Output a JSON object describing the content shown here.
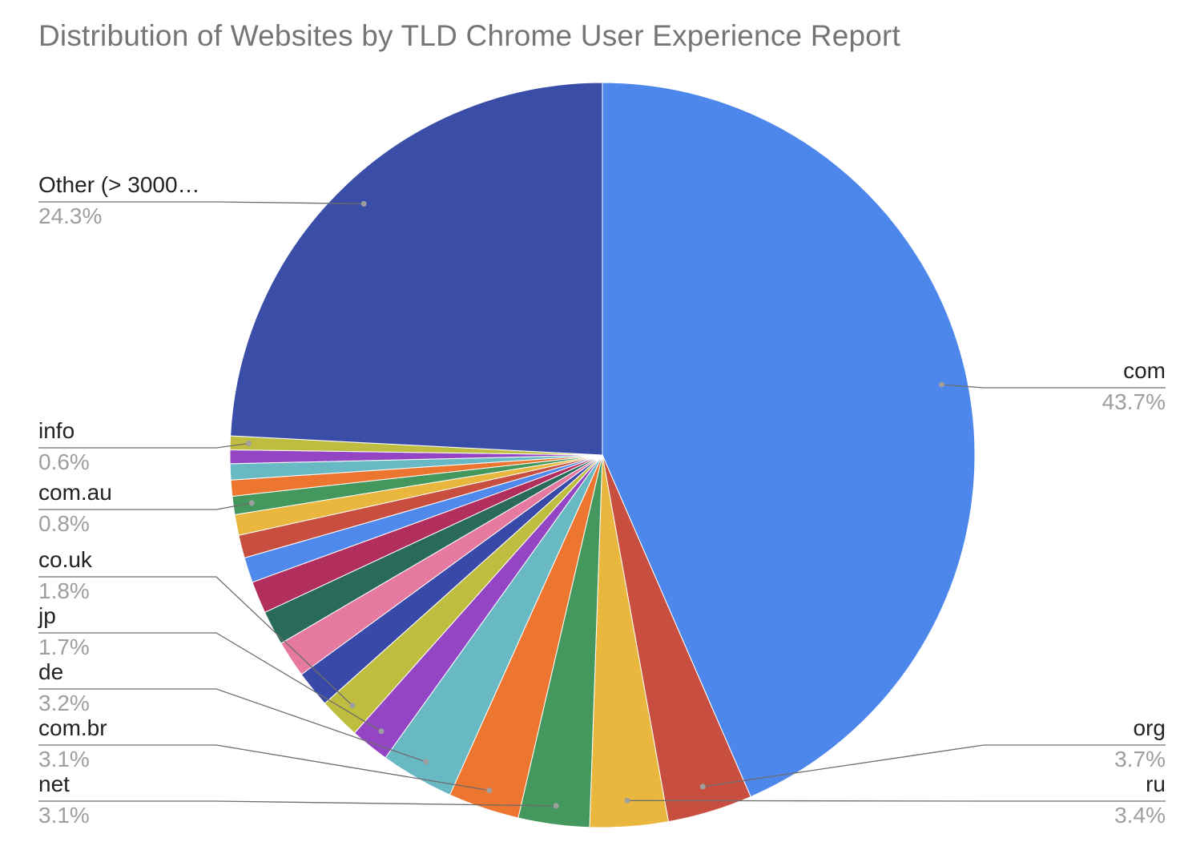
{
  "chart_data": {
    "type": "pie",
    "title": "Distribution of Websites by TLD Chrome User Experience Report",
    "slices": [
      {
        "label": "com",
        "value": 43.7,
        "pct_label": "43.7%",
        "color": "#4e87eb",
        "labeled": true
      },
      {
        "label": "org",
        "value": 3.7,
        "pct_label": "3.7%",
        "color": "#c84f40",
        "labeled": true
      },
      {
        "label": "ru",
        "value": 3.4,
        "pct_label": "3.4%",
        "color": "#e9b63e",
        "labeled": true
      },
      {
        "label": "net",
        "value": 3.1,
        "pct_label": "3.1%",
        "color": "#44975d",
        "labeled": true
      },
      {
        "label": "com.br",
        "value": 3.1,
        "pct_label": "3.1%",
        "color": "#ec7530",
        "labeled": true
      },
      {
        "label": "de",
        "value": 3.2,
        "pct_label": "3.2%",
        "color": "#68b9c3",
        "labeled": true
      },
      {
        "label": "jp",
        "value": 1.7,
        "pct_label": "1.7%",
        "color": "#9345c4",
        "labeled": true
      },
      {
        "label": "co.uk",
        "value": 1.8,
        "pct_label": "1.8%",
        "color": "#bfbd3f",
        "labeled": true
      },
      {
        "label": "",
        "value": 1.6,
        "pct_label": "",
        "color": "#3949a8",
        "labeled": false
      },
      {
        "label": "",
        "value": 1.6,
        "pct_label": "",
        "color": "#e6799f",
        "labeled": false
      },
      {
        "label": "",
        "value": 1.5,
        "pct_label": "",
        "color": "#2a6a5a",
        "labeled": false
      },
      {
        "label": "",
        "value": 1.4,
        "pct_label": "",
        "color": "#b22e5c",
        "labeled": false
      },
      {
        "label": "",
        "value": 1.1,
        "pct_label": "",
        "color": "#4f89ec",
        "labeled": false
      },
      {
        "label": "",
        "value": 1.0,
        "pct_label": "",
        "color": "#c84f40",
        "labeled": false
      },
      {
        "label": "",
        "value": 0.9,
        "pct_label": "",
        "color": "#e9b63e",
        "labeled": false
      },
      {
        "label": "com.au",
        "value": 0.8,
        "pct_label": "0.8%",
        "color": "#44975d",
        "labeled": true
      },
      {
        "label": "",
        "value": 0.7,
        "pct_label": "",
        "color": "#ec7530",
        "labeled": false
      },
      {
        "label": "",
        "value": 0.7,
        "pct_label": "",
        "color": "#68b9c3",
        "labeled": false
      },
      {
        "label": "",
        "value": 0.6,
        "pct_label": "",
        "color": "#9345c4",
        "labeled": false
      },
      {
        "label": "info",
        "value": 0.6,
        "pct_label": "0.6%",
        "color": "#bfbd3f",
        "labeled": true
      },
      {
        "label": "Other (> 3000…",
        "value": 24.3,
        "pct_label": "24.3%",
        "color": "#3a4ea8",
        "labeled": true
      }
    ],
    "legend": "none",
    "label_color": "#222222",
    "pct_color": "#9e9e9e",
    "leader_color": "#6d6d6d"
  }
}
